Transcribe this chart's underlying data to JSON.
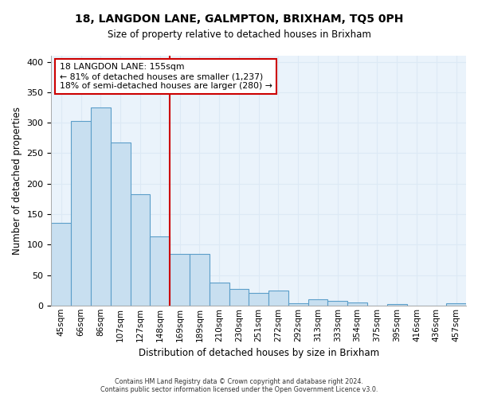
{
  "title": "18, LANGDON LANE, GALMPTON, BRIXHAM, TQ5 0PH",
  "subtitle": "Size of property relative to detached houses in Brixham",
  "xlabel": "Distribution of detached houses by size in Brixham",
  "ylabel": "Number of detached properties",
  "footnote1": "Contains HM Land Registry data © Crown copyright and database right 2024.",
  "footnote2": "Contains public sector information licensed under the Open Government Licence v3.0.",
  "bar_labels": [
    "45sqm",
    "66sqm",
    "86sqm",
    "107sqm",
    "127sqm",
    "148sqm",
    "169sqm",
    "189sqm",
    "210sqm",
    "230sqm",
    "251sqm",
    "272sqm",
    "292sqm",
    "313sqm",
    "333sqm",
    "354sqm",
    "375sqm",
    "395sqm",
    "416sqm",
    "436sqm",
    "457sqm"
  ],
  "bar_values": [
    135,
    303,
    325,
    268,
    182,
    113,
    85,
    85,
    37,
    27,
    20,
    25,
    3,
    10,
    8,
    5,
    0,
    2,
    0,
    0,
    3
  ],
  "bar_color": "#c8dff0",
  "bar_edge_color": "#5b9ec9",
  "ylim": [
    0,
    410
  ],
  "yticks": [
    0,
    50,
    100,
    150,
    200,
    250,
    300,
    350,
    400
  ],
  "vline_x": 5.5,
  "vline_color": "#cc0000",
  "annotation_title": "18 LANGDON LANE: 155sqm",
  "annotation_line1": "← 81% of detached houses are smaller (1,237)",
  "annotation_line2": "18% of semi-detached houses are larger (280) →",
  "background_color": "#ffffff",
  "grid_color": "#dce9f5",
  "grid_alpha": 1.0
}
